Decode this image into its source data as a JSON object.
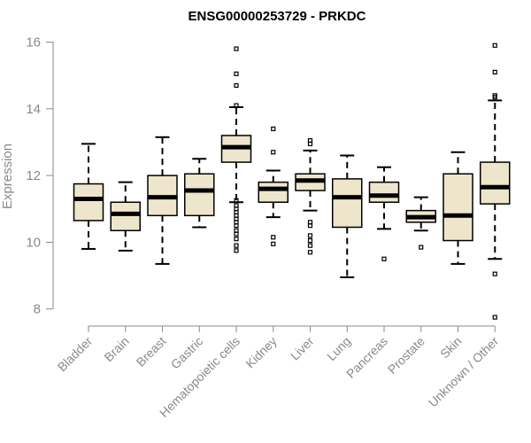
{
  "chart_data": {
    "type": "boxplot",
    "title": "ENSG00000253729 - PRKDC",
    "ylabel": "Expression",
    "ylim": [
      7.7,
      16.2
    ],
    "yticks": [
      8,
      10,
      12,
      14,
      16
    ],
    "box_color": "#ede6cc",
    "categories": [
      "Bladder",
      "Brain",
      "Breast",
      "Gastric",
      "Hematopoietic cells",
      "Kidney",
      "Liver",
      "Lung",
      "Pancreas",
      "Prostate",
      "Skin",
      "Unknown / Other"
    ],
    "boxes": [
      {
        "whisker_low": 9.8,
        "q1": 10.65,
        "median": 11.3,
        "q3": 11.75,
        "whisker_high": 12.95,
        "outliers": []
      },
      {
        "whisker_low": 9.75,
        "q1": 10.35,
        "median": 10.85,
        "q3": 11.2,
        "whisker_high": 11.8,
        "outliers": []
      },
      {
        "whisker_low": 9.35,
        "q1": 10.8,
        "median": 11.35,
        "q3": 12.0,
        "whisker_high": 13.15,
        "outliers": []
      },
      {
        "whisker_low": 10.45,
        "q1": 10.8,
        "median": 11.55,
        "q3": 12.05,
        "whisker_high": 12.5,
        "outliers": []
      },
      {
        "whisker_low": 11.2,
        "q1": 12.4,
        "median": 12.85,
        "q3": 13.2,
        "whisker_high": 14.05,
        "outliers": [
          15.8,
          15.05,
          14.7,
          14.1,
          11.25,
          11.1,
          11.0,
          10.9,
          10.8,
          10.7,
          10.6,
          10.5,
          10.35,
          10.25,
          10.1,
          9.9,
          9.75
        ]
      },
      {
        "whisker_low": 10.75,
        "q1": 11.2,
        "median": 11.6,
        "q3": 11.8,
        "whisker_high": 12.15,
        "outliers": [
          13.4,
          12.7,
          10.15,
          9.95
        ]
      },
      {
        "whisker_low": 10.95,
        "q1": 11.55,
        "median": 11.85,
        "q3": 12.05,
        "whisker_high": 12.75,
        "outliers": [
          13.05,
          12.95,
          10.6,
          10.5,
          10.2,
          10.05,
          9.9,
          9.7
        ]
      },
      {
        "whisker_low": 8.95,
        "q1": 10.45,
        "median": 11.35,
        "q3": 11.9,
        "whisker_high": 12.6,
        "outliers": []
      },
      {
        "whisker_low": 10.4,
        "q1": 11.2,
        "median": 11.4,
        "q3": 11.8,
        "whisker_high": 12.25,
        "outliers": [
          9.5
        ]
      },
      {
        "whisker_low": 10.35,
        "q1": 10.6,
        "median": 10.75,
        "q3": 10.95,
        "whisker_high": 11.35,
        "outliers": [
          9.85
        ]
      },
      {
        "whisker_low": 9.35,
        "q1": 10.05,
        "median": 10.8,
        "q3": 12.05,
        "whisker_high": 12.7,
        "outliers": []
      },
      {
        "whisker_low": 9.5,
        "q1": 11.15,
        "median": 11.65,
        "q3": 12.4,
        "whisker_high": 14.25,
        "outliers": [
          15.9,
          15.1,
          14.4,
          14.35,
          9.05,
          7.75
        ]
      }
    ]
  }
}
